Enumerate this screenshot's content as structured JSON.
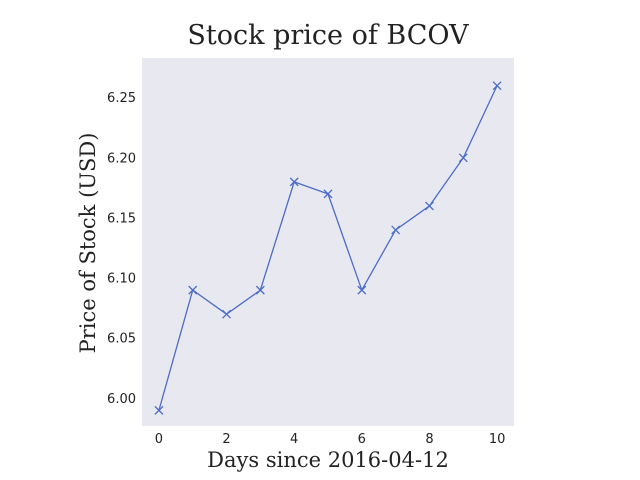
{
  "chart_data": {
    "type": "line",
    "title": "Stock price of BCOV",
    "xlabel": "Days since 2016-04-12",
    "ylabel": "Price of Stock (USD)",
    "x": [
      0,
      1,
      2,
      3,
      4,
      5,
      6,
      7,
      8,
      9,
      10
    ],
    "series": [
      {
        "values": [
          5.99,
          6.09,
          6.07,
          6.09,
          6.18,
          6.17,
          6.09,
          6.14,
          6.16,
          6.2,
          6.26
        ],
        "marker": "x"
      }
    ],
    "xticks": [
      "0",
      "2",
      "4",
      "6",
      "8",
      "10"
    ],
    "yticks": [
      "6.00",
      "6.05",
      "6.10",
      "6.15",
      "6.20",
      "6.25"
    ],
    "xlim": [
      -0.5,
      10.5
    ],
    "ylim": [
      5.977,
      6.283
    ],
    "grid": false,
    "colors": {
      "line": "#4c6cc7",
      "plot_bg": "#e8e8f0"
    }
  }
}
